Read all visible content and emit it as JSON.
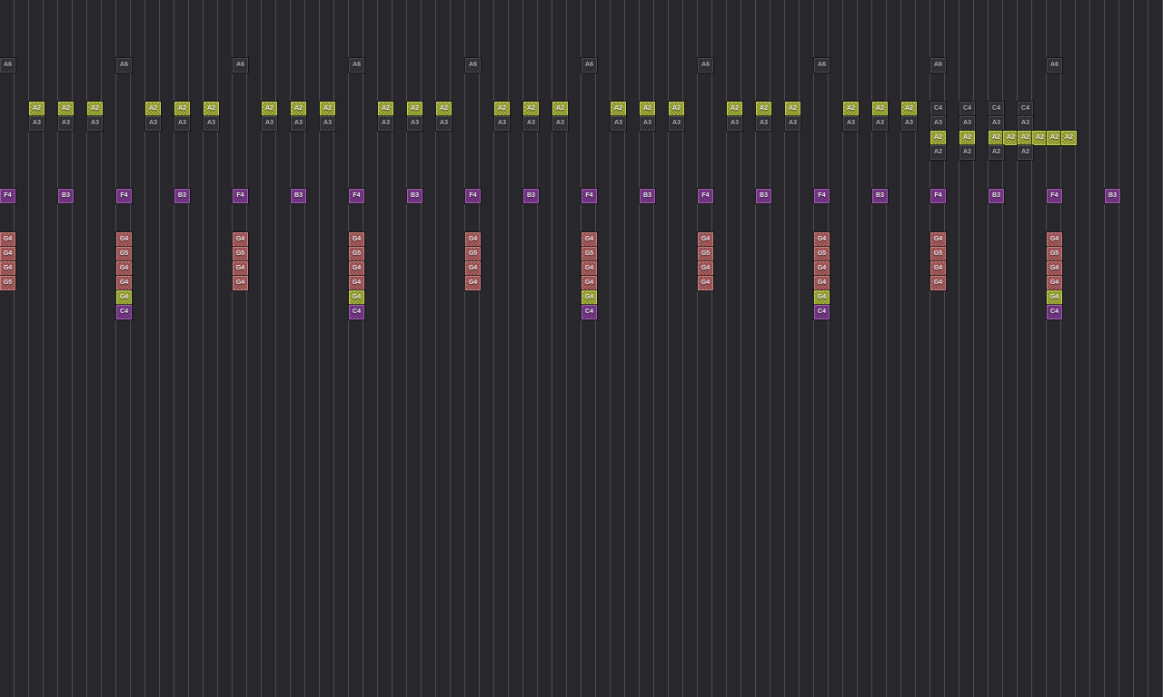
{
  "grid": {
    "columns": 80,
    "rows": 48,
    "cell_size": 16
  },
  "colors": {
    "background": "#28282c",
    "grid_line": "#4d4d53",
    "note_text": "#f0eaf0",
    "note_green_fill": "#a5b03a",
    "note_green_border": "#c6d058",
    "note_dark_fill": "#35353b",
    "note_dark_border": "#4a4a52",
    "note_dark_text": "#b4b4ba",
    "note_purple_fill": "#7a3a8c",
    "note_purple_border": "#a05fb2",
    "note_red_fill": "#ad5e5e",
    "note_red_border": "#c98282"
  },
  "notes": [
    {
      "c": 0,
      "r": 4,
      "n": "A6",
      "t": "dark"
    },
    {
      "c": 2,
      "r": 7,
      "n": "A2",
      "t": "green"
    },
    {
      "c": 4,
      "r": 7,
      "n": "A2",
      "t": "green"
    },
    {
      "c": 6,
      "r": 7,
      "n": "A2",
      "t": "green"
    },
    {
      "c": 2,
      "r": 8,
      "n": "A3",
      "t": "dark"
    },
    {
      "c": 4,
      "r": 8,
      "n": "A3",
      "t": "dark"
    },
    {
      "c": 6,
      "r": 8,
      "n": "A3",
      "t": "dark"
    },
    {
      "c": 0,
      "r": 13,
      "n": "F4",
      "t": "purple"
    },
    {
      "c": 4,
      "r": 13,
      "n": "B3",
      "t": "purple"
    },
    {
      "c": 0,
      "r": 16,
      "n": "G4",
      "t": "red"
    },
    {
      "c": 0,
      "r": 17,
      "n": "G4",
      "t": "red"
    },
    {
      "c": 0,
      "r": 18,
      "n": "G4",
      "t": "red"
    },
    {
      "c": 0,
      "r": 19,
      "n": "G5",
      "t": "red"
    },
    {
      "c": 8,
      "r": 4,
      "n": "A6",
      "t": "dark"
    },
    {
      "c": 10,
      "r": 7,
      "n": "A2",
      "t": "green"
    },
    {
      "c": 12,
      "r": 7,
      "n": "A2",
      "t": "green"
    },
    {
      "c": 14,
      "r": 7,
      "n": "A2",
      "t": "green"
    },
    {
      "c": 10,
      "r": 8,
      "n": "A3",
      "t": "dark"
    },
    {
      "c": 12,
      "r": 8,
      "n": "A3",
      "t": "dark"
    },
    {
      "c": 14,
      "r": 8,
      "n": "A3",
      "t": "dark"
    },
    {
      "c": 8,
      "r": 13,
      "n": "F4",
      "t": "purple"
    },
    {
      "c": 12,
      "r": 13,
      "n": "B3",
      "t": "purple"
    },
    {
      "c": 8,
      "r": 16,
      "n": "G4",
      "t": "red"
    },
    {
      "c": 8,
      "r": 17,
      "n": "G5",
      "t": "red"
    },
    {
      "c": 8,
      "r": 18,
      "n": "G4",
      "t": "red"
    },
    {
      "c": 8,
      "r": 19,
      "n": "G4",
      "t": "red"
    },
    {
      "c": 8,
      "r": 20,
      "n": "G4",
      "t": "green"
    },
    {
      "c": 8,
      "r": 21,
      "n": "C4",
      "t": "purple"
    },
    {
      "c": 16,
      "r": 4,
      "n": "A6",
      "t": "dark"
    },
    {
      "c": 18,
      "r": 7,
      "n": "A2",
      "t": "green"
    },
    {
      "c": 20,
      "r": 7,
      "n": "A2",
      "t": "green"
    },
    {
      "c": 22,
      "r": 7,
      "n": "A2",
      "t": "green"
    },
    {
      "c": 18,
      "r": 8,
      "n": "A3",
      "t": "dark"
    },
    {
      "c": 20,
      "r": 8,
      "n": "A3",
      "t": "dark"
    },
    {
      "c": 22,
      "r": 8,
      "n": "A3",
      "t": "dark"
    },
    {
      "c": 16,
      "r": 13,
      "n": "F4",
      "t": "purple"
    },
    {
      "c": 20,
      "r": 13,
      "n": "B3",
      "t": "purple"
    },
    {
      "c": 16,
      "r": 16,
      "n": "G4",
      "t": "red"
    },
    {
      "c": 16,
      "r": 17,
      "n": "G5",
      "t": "red"
    },
    {
      "c": 16,
      "r": 18,
      "n": "G4",
      "t": "red"
    },
    {
      "c": 16,
      "r": 19,
      "n": "G4",
      "t": "red"
    },
    {
      "c": 24,
      "r": 4,
      "n": "A6",
      "t": "dark"
    },
    {
      "c": 26,
      "r": 7,
      "n": "A2",
      "t": "green"
    },
    {
      "c": 28,
      "r": 7,
      "n": "A2",
      "t": "green"
    },
    {
      "c": 30,
      "r": 7,
      "n": "A2",
      "t": "green"
    },
    {
      "c": 26,
      "r": 8,
      "n": "A3",
      "t": "dark"
    },
    {
      "c": 28,
      "r": 8,
      "n": "A3",
      "t": "dark"
    },
    {
      "c": 30,
      "r": 8,
      "n": "A3",
      "t": "dark"
    },
    {
      "c": 24,
      "r": 13,
      "n": "F4",
      "t": "purple"
    },
    {
      "c": 28,
      "r": 13,
      "n": "B3",
      "t": "purple"
    },
    {
      "c": 24,
      "r": 16,
      "n": "G4",
      "t": "red"
    },
    {
      "c": 24,
      "r": 17,
      "n": "G5",
      "t": "red"
    },
    {
      "c": 24,
      "r": 18,
      "n": "G4",
      "t": "red"
    },
    {
      "c": 24,
      "r": 19,
      "n": "G4",
      "t": "red"
    },
    {
      "c": 24,
      "r": 20,
      "n": "G4",
      "t": "green"
    },
    {
      "c": 24,
      "r": 21,
      "n": "C4",
      "t": "purple"
    },
    {
      "c": 32,
      "r": 4,
      "n": "A6",
      "t": "dark"
    },
    {
      "c": 34,
      "r": 7,
      "n": "A2",
      "t": "green"
    },
    {
      "c": 36,
      "r": 7,
      "n": "A2",
      "t": "green"
    },
    {
      "c": 38,
      "r": 7,
      "n": "A2",
      "t": "green"
    },
    {
      "c": 34,
      "r": 8,
      "n": "A3",
      "t": "dark"
    },
    {
      "c": 36,
      "r": 8,
      "n": "A3",
      "t": "dark"
    },
    {
      "c": 38,
      "r": 8,
      "n": "A3",
      "t": "dark"
    },
    {
      "c": 32,
      "r": 13,
      "n": "F4",
      "t": "purple"
    },
    {
      "c": 36,
      "r": 13,
      "n": "B3",
      "t": "purple"
    },
    {
      "c": 32,
      "r": 16,
      "n": "G4",
      "t": "red"
    },
    {
      "c": 32,
      "r": 17,
      "n": "G5",
      "t": "red"
    },
    {
      "c": 32,
      "r": 18,
      "n": "G4",
      "t": "red"
    },
    {
      "c": 32,
      "r": 19,
      "n": "G4",
      "t": "red"
    },
    {
      "c": 40,
      "r": 4,
      "n": "A6",
      "t": "dark"
    },
    {
      "c": 42,
      "r": 7,
      "n": "A2",
      "t": "green"
    },
    {
      "c": 44,
      "r": 7,
      "n": "A2",
      "t": "green"
    },
    {
      "c": 46,
      "r": 7,
      "n": "A2",
      "t": "green"
    },
    {
      "c": 42,
      "r": 8,
      "n": "A3",
      "t": "dark"
    },
    {
      "c": 44,
      "r": 8,
      "n": "A3",
      "t": "dark"
    },
    {
      "c": 46,
      "r": 8,
      "n": "A3",
      "t": "dark"
    },
    {
      "c": 40,
      "r": 13,
      "n": "F4",
      "t": "purple"
    },
    {
      "c": 44,
      "r": 13,
      "n": "B3",
      "t": "purple"
    },
    {
      "c": 40,
      "r": 16,
      "n": "G4",
      "t": "red"
    },
    {
      "c": 40,
      "r": 17,
      "n": "G5",
      "t": "red"
    },
    {
      "c": 40,
      "r": 18,
      "n": "G4",
      "t": "red"
    },
    {
      "c": 40,
      "r": 19,
      "n": "G4",
      "t": "red"
    },
    {
      "c": 40,
      "r": 20,
      "n": "G4",
      "t": "green"
    },
    {
      "c": 40,
      "r": 21,
      "n": "C4",
      "t": "purple"
    },
    {
      "c": 48,
      "r": 4,
      "n": "A6",
      "t": "dark"
    },
    {
      "c": 50,
      "r": 7,
      "n": "A2",
      "t": "green"
    },
    {
      "c": 52,
      "r": 7,
      "n": "A2",
      "t": "green"
    },
    {
      "c": 54,
      "r": 7,
      "n": "A2",
      "t": "green"
    },
    {
      "c": 50,
      "r": 8,
      "n": "A3",
      "t": "dark"
    },
    {
      "c": 52,
      "r": 8,
      "n": "A3",
      "t": "dark"
    },
    {
      "c": 54,
      "r": 8,
      "n": "A3",
      "t": "dark"
    },
    {
      "c": 48,
      "r": 13,
      "n": "F4",
      "t": "purple"
    },
    {
      "c": 52,
      "r": 13,
      "n": "B3",
      "t": "purple"
    },
    {
      "c": 48,
      "r": 16,
      "n": "G4",
      "t": "red"
    },
    {
      "c": 48,
      "r": 17,
      "n": "G5",
      "t": "red"
    },
    {
      "c": 48,
      "r": 18,
      "n": "G4",
      "t": "red"
    },
    {
      "c": 48,
      "r": 19,
      "n": "G4",
      "t": "red"
    },
    {
      "c": 56,
      "r": 4,
      "n": "A6",
      "t": "dark"
    },
    {
      "c": 58,
      "r": 7,
      "n": "A2",
      "t": "green"
    },
    {
      "c": 60,
      "r": 7,
      "n": "A2",
      "t": "green"
    },
    {
      "c": 62,
      "r": 7,
      "n": "A2",
      "t": "green"
    },
    {
      "c": 58,
      "r": 8,
      "n": "A3",
      "t": "dark"
    },
    {
      "c": 60,
      "r": 8,
      "n": "A3",
      "t": "dark"
    },
    {
      "c": 62,
      "r": 8,
      "n": "A3",
      "t": "dark"
    },
    {
      "c": 56,
      "r": 13,
      "n": "F4",
      "t": "purple"
    },
    {
      "c": 60,
      "r": 13,
      "n": "B3",
      "t": "purple"
    },
    {
      "c": 56,
      "r": 16,
      "n": "G4",
      "t": "red"
    },
    {
      "c": 56,
      "r": 17,
      "n": "G5",
      "t": "red"
    },
    {
      "c": 56,
      "r": 18,
      "n": "G4",
      "t": "red"
    },
    {
      "c": 56,
      "r": 19,
      "n": "G4",
      "t": "red"
    },
    {
      "c": 56,
      "r": 20,
      "n": "G4",
      "t": "green"
    },
    {
      "c": 56,
      "r": 21,
      "n": "C4",
      "t": "purple"
    },
    {
      "c": 64,
      "r": 4,
      "n": "A6",
      "t": "dark"
    },
    {
      "c": 64,
      "r": 7,
      "n": "C4",
      "t": "dark"
    },
    {
      "c": 66,
      "r": 7,
      "n": "C4",
      "t": "dark"
    },
    {
      "c": 68,
      "r": 7,
      "n": "C4",
      "t": "dark"
    },
    {
      "c": 70,
      "r": 7,
      "n": "C4",
      "t": "dark"
    },
    {
      "c": 64,
      "r": 8,
      "n": "A3",
      "t": "dark"
    },
    {
      "c": 66,
      "r": 8,
      "n": "A3",
      "t": "dark"
    },
    {
      "c": 68,
      "r": 8,
      "n": "A3",
      "t": "dark"
    },
    {
      "c": 70,
      "r": 8,
      "n": "A3",
      "t": "dark"
    },
    {
      "c": 64,
      "r": 9,
      "n": "A2",
      "t": "green"
    },
    {
      "c": 66,
      "r": 9,
      "n": "A2",
      "t": "green"
    },
    {
      "c": 68,
      "r": 9,
      "n": "A2",
      "t": "green"
    },
    {
      "c": 69,
      "r": 9,
      "n": "A2",
      "t": "green"
    },
    {
      "c": 70,
      "r": 9,
      "n": "A2",
      "t": "green"
    },
    {
      "c": 71,
      "r": 9,
      "n": "A2",
      "t": "green"
    },
    {
      "c": 72,
      "r": 9,
      "n": "A2",
      "t": "green"
    },
    {
      "c": 73,
      "r": 9,
      "n": "A2",
      "t": "green"
    },
    {
      "c": 64,
      "r": 10,
      "n": "A2",
      "t": "dark"
    },
    {
      "c": 66,
      "r": 10,
      "n": "A2",
      "t": "dark"
    },
    {
      "c": 68,
      "r": 10,
      "n": "A2",
      "t": "dark"
    },
    {
      "c": 70,
      "r": 10,
      "n": "A2",
      "t": "dark"
    },
    {
      "c": 64,
      "r": 13,
      "n": "F4",
      "t": "purple"
    },
    {
      "c": 68,
      "r": 13,
      "n": "B3",
      "t": "purple"
    },
    {
      "c": 64,
      "r": 16,
      "n": "G4",
      "t": "red"
    },
    {
      "c": 64,
      "r": 17,
      "n": "G5",
      "t": "red"
    },
    {
      "c": 64,
      "r": 18,
      "n": "G4",
      "t": "red"
    },
    {
      "c": 64,
      "r": 19,
      "n": "G4",
      "t": "red"
    },
    {
      "c": 72,
      "r": 4,
      "n": "A6",
      "t": "dark"
    },
    {
      "c": 72,
      "r": 13,
      "n": "F4",
      "t": "purple"
    },
    {
      "c": 76,
      "r": 13,
      "n": "B3",
      "t": "purple"
    },
    {
      "c": 72,
      "r": 16,
      "n": "G4",
      "t": "red"
    },
    {
      "c": 72,
      "r": 17,
      "n": "G5",
      "t": "red"
    },
    {
      "c": 72,
      "r": 18,
      "n": "G4",
      "t": "red"
    },
    {
      "c": 72,
      "r": 19,
      "n": "G4",
      "t": "red"
    },
    {
      "c": 72,
      "r": 20,
      "n": "G4",
      "t": "green"
    },
    {
      "c": 72,
      "r": 21,
      "n": "C4",
      "t": "purple"
    }
  ]
}
